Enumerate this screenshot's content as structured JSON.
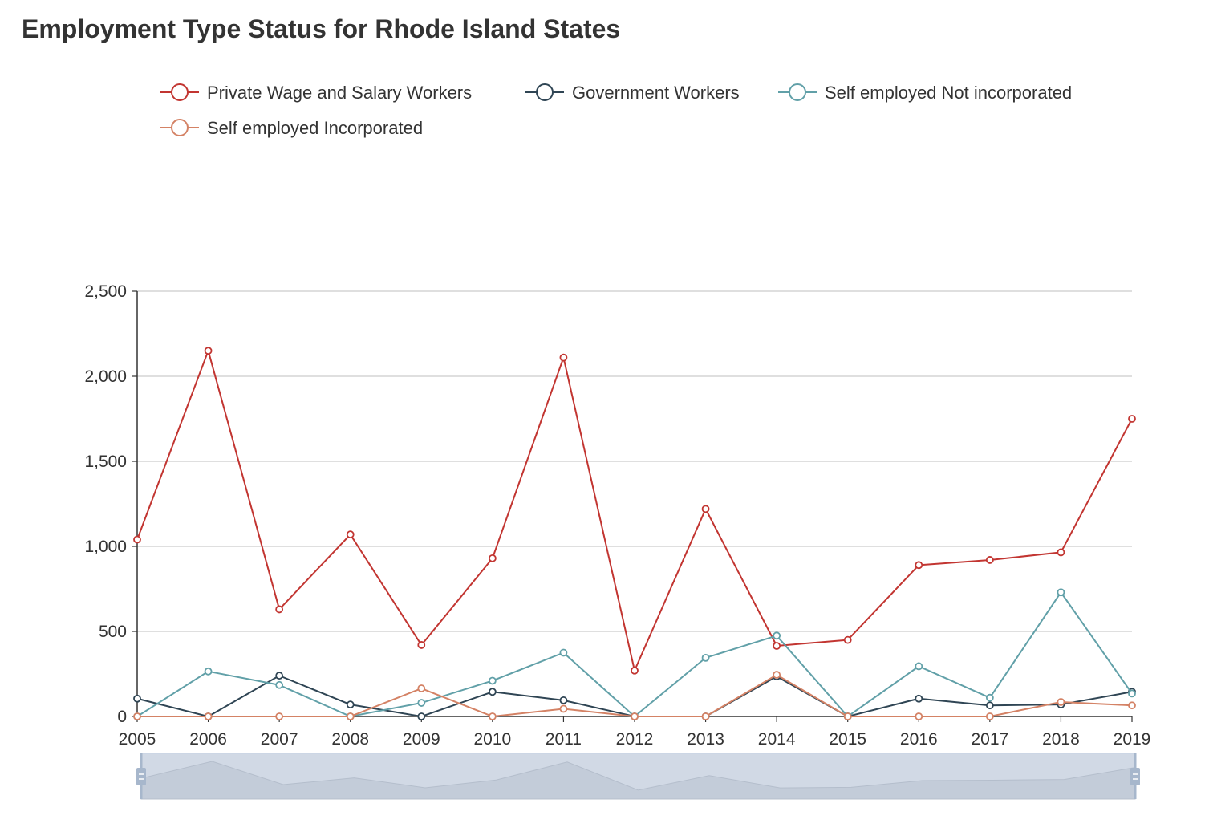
{
  "chart_data": {
    "type": "line",
    "title": "Employment Type Status for Rhode Island States",
    "xlabel": "",
    "ylabel": "",
    "categories": [
      "2005",
      "2006",
      "2007",
      "2008",
      "2009",
      "2010",
      "2011",
      "2012",
      "2013",
      "2014",
      "2015",
      "2016",
      "2017",
      "2018",
      "2019"
    ],
    "ylim": [
      0,
      2500
    ],
    "yticks": [
      0,
      500,
      1000,
      1500,
      2000,
      2500
    ],
    "ytick_labels": [
      "0",
      "500",
      "1,000",
      "1,500",
      "2,000",
      "2,500"
    ],
    "grid": true,
    "legend_position": "top",
    "has_data_zoom_slider": true,
    "series": [
      {
        "name": "Private Wage and Salary Workers",
        "color": "#c23531",
        "values": [
          1040,
          2150,
          630,
          1070,
          420,
          930,
          2110,
          270,
          1220,
          415,
          450,
          890,
          920,
          965,
          1750
        ]
      },
      {
        "name": "Government Workers",
        "color": "#2f4554",
        "values": [
          105,
          0,
          240,
          70,
          0,
          145,
          95,
          0,
          0,
          235,
          0,
          105,
          65,
          70,
          145
        ]
      },
      {
        "name": "Self employed Not incorporated",
        "color": "#61a0a8",
        "values": [
          0,
          265,
          185,
          0,
          80,
          210,
          375,
          0,
          345,
          475,
          0,
          295,
          110,
          730,
          135
        ]
      },
      {
        "name": "Self employed Incorporated",
        "color": "#d48265",
        "values": [
          0,
          0,
          0,
          0,
          165,
          0,
          45,
          0,
          0,
          245,
          0,
          0,
          0,
          85,
          65
        ]
      }
    ]
  }
}
